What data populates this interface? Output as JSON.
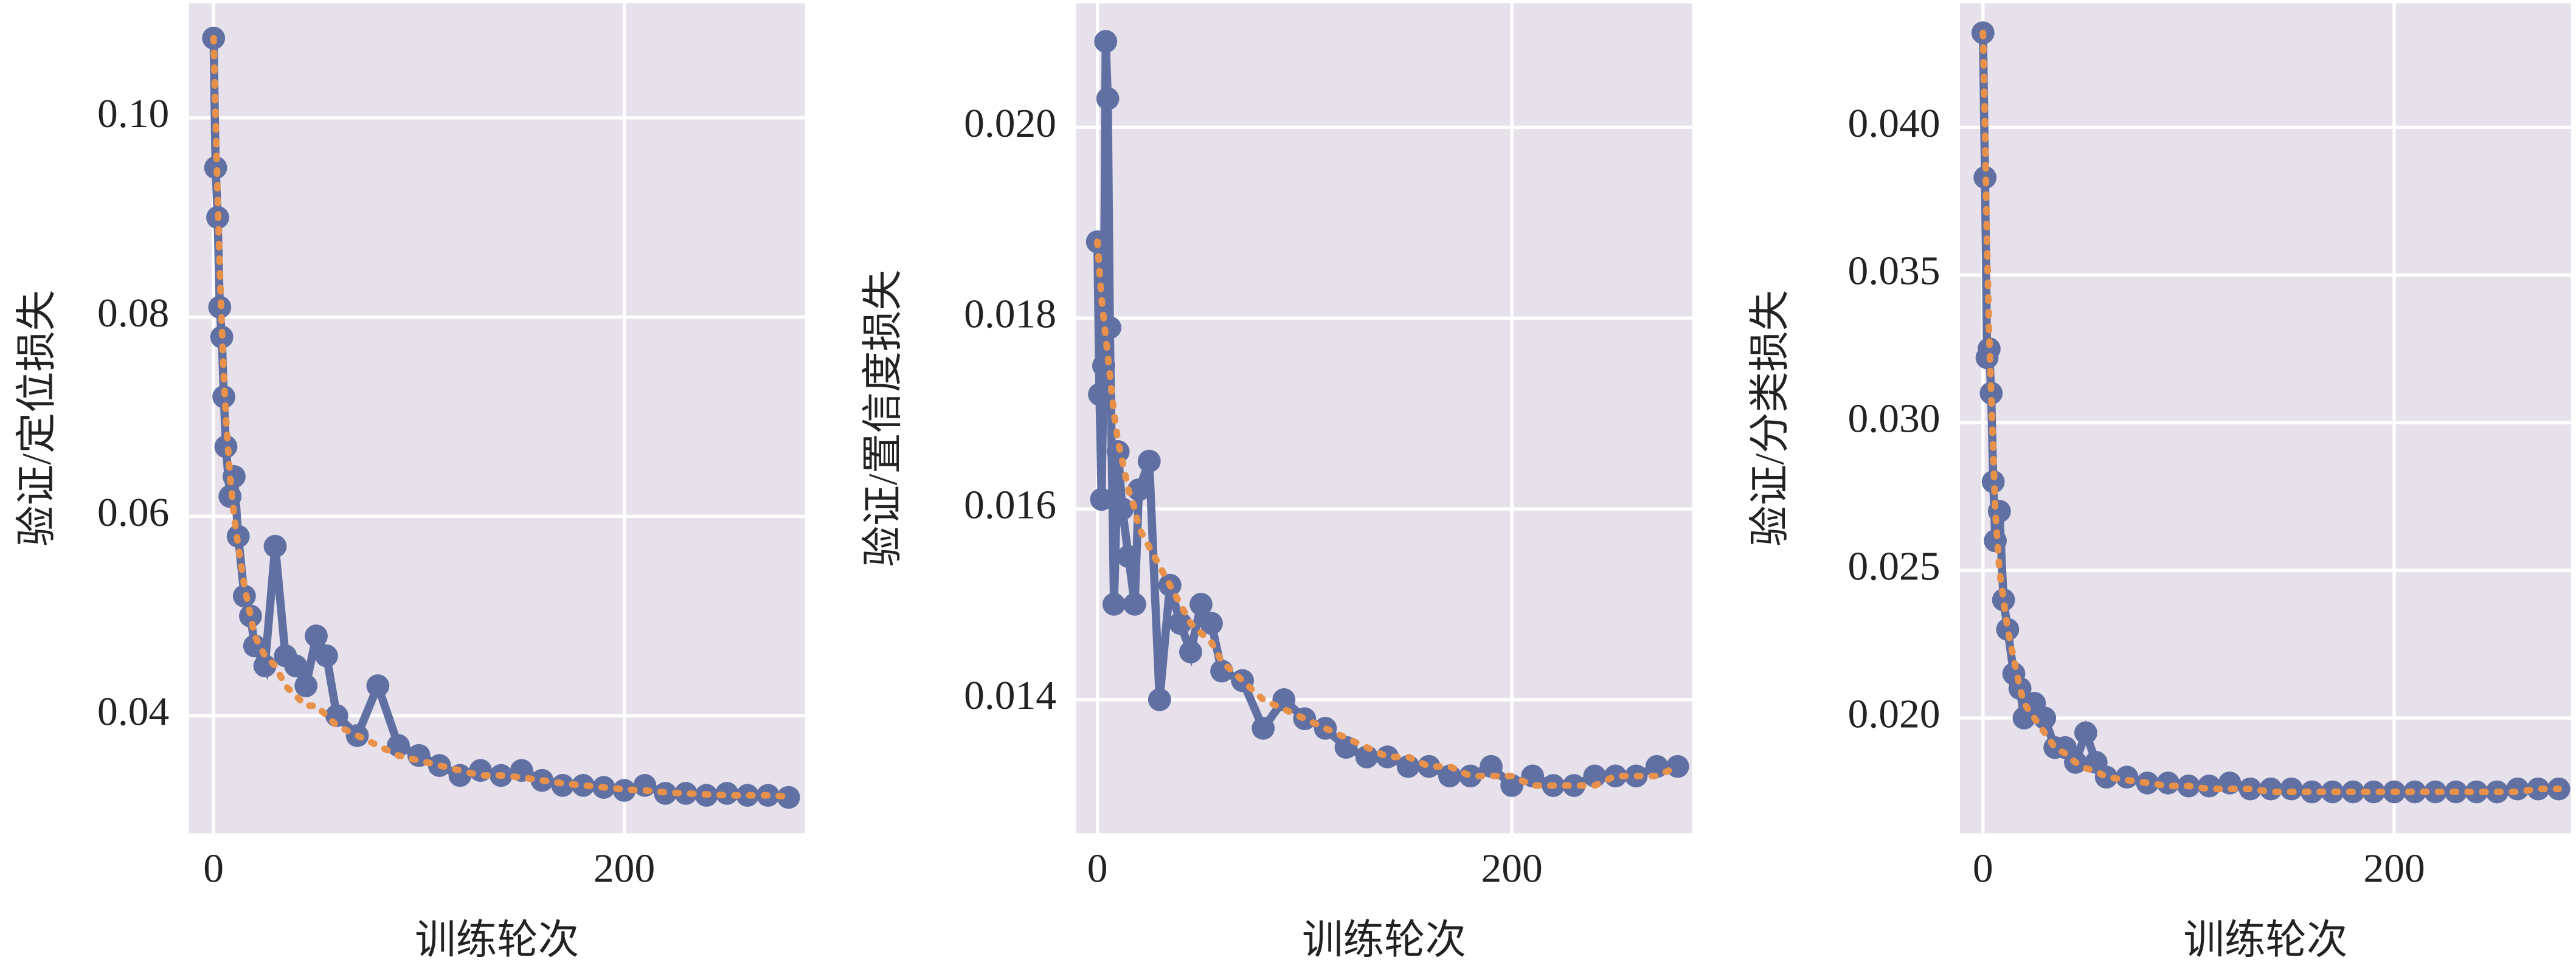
{
  "chart_data": [
    {
      "type": "line",
      "ylabel": "验证/定位损失",
      "xlabel": "训练轮次",
      "x": [
        0,
        1,
        2,
        3,
        4,
        5,
        6,
        8,
        10,
        12,
        15,
        18,
        20,
        25,
        30,
        35,
        40,
        45,
        50,
        55,
        60,
        70,
        80,
        90,
        100,
        110,
        120,
        130,
        140,
        150,
        160,
        170,
        180,
        190,
        200,
        210,
        220,
        230,
        240,
        250,
        260,
        270,
        280
      ],
      "series": [
        {
          "color": "#6170a3",
          "style": "solid-marker",
          "values": [
            0.108,
            0.095,
            0.09,
            0.081,
            0.078,
            0.072,
            0.067,
            0.062,
            0.064,
            0.058,
            0.052,
            0.05,
            0.047,
            0.045,
            0.057,
            0.046,
            0.045,
            0.043,
            0.048,
            0.046,
            0.04,
            0.038,
            0.043,
            0.037,
            0.036,
            0.035,
            0.034,
            0.0345,
            0.034,
            0.0345,
            0.0335,
            0.033,
            0.033,
            0.0328,
            0.0325,
            0.033,
            0.0322,
            0.0322,
            0.032,
            0.0322,
            0.032,
            0.032,
            0.0318
          ]
        },
        {
          "color": "#e8914a",
          "style": "dotted",
          "values": [
            0.108,
            0.1,
            0.092,
            0.085,
            0.079,
            0.074,
            0.07,
            0.064,
            0.06,
            0.057,
            0.053,
            0.05,
            0.048,
            0.046,
            0.045,
            0.043,
            0.042,
            0.041,
            0.041,
            0.04,
            0.039,
            0.038,
            0.037,
            0.036,
            0.0355,
            0.035,
            0.0345,
            0.034,
            0.034,
            0.0338,
            0.0335,
            0.0332,
            0.033,
            0.0328,
            0.0326,
            0.0325,
            0.0323,
            0.0322,
            0.0321,
            0.032,
            0.032,
            0.032,
            0.0319
          ]
        }
      ],
      "xlim": [
        -12,
        288
      ],
      "ylim": [
        0.0282,
        0.1115
      ],
      "xticks": [
        0,
        200
      ],
      "yticks": [
        0.04,
        0.06,
        0.08,
        {
          "value": 0.1,
          "label": "0.10"
        }
      ],
      "grid": true
    },
    {
      "type": "line",
      "ylabel": "验证/置信度损失",
      "xlabel": "训练轮次",
      "x": [
        0,
        1,
        2,
        3,
        4,
        5,
        6,
        8,
        10,
        12,
        15,
        18,
        20,
        25,
        30,
        35,
        40,
        45,
        50,
        55,
        60,
        70,
        80,
        90,
        100,
        110,
        120,
        130,
        140,
        150,
        160,
        170,
        180,
        190,
        200,
        210,
        220,
        230,
        240,
        250,
        260,
        270,
        280
      ],
      "series": [
        {
          "color": "#6170a3",
          "style": "solid-marker",
          "values": [
            0.0188,
            0.0172,
            0.0161,
            0.0175,
            0.0209,
            0.0203,
            0.0179,
            0.015,
            0.0166,
            0.016,
            0.0155,
            0.015,
            0.0162,
            0.0165,
            0.014,
            0.0152,
            0.0148,
            0.0145,
            0.015,
            0.0148,
            0.0143,
            0.0142,
            0.0137,
            0.014,
            0.0138,
            0.0137,
            0.0135,
            0.0134,
            0.0134,
            0.0133,
            0.0133,
            0.0132,
            0.0132,
            0.0133,
            0.0131,
            0.0132,
            0.0131,
            0.0131,
            0.0132,
            0.0132,
            0.0132,
            0.0133,
            0.0133
          ]
        },
        {
          "color": "#e8914a",
          "style": "dotted",
          "values": [
            0.0188,
            0.0185,
            0.0182,
            0.018,
            0.0178,
            0.0176,
            0.0174,
            0.017,
            0.0167,
            0.0165,
            0.0162,
            0.016,
            0.0158,
            0.0156,
            0.0154,
            0.0152,
            0.015,
            0.0148,
            0.0147,
            0.0146,
            0.0144,
            0.0142,
            0.014,
            0.0139,
            0.0138,
            0.0137,
            0.0136,
            0.0135,
            0.0134,
            0.0134,
            0.0133,
            0.0133,
            0.0132,
            0.0132,
            0.0132,
            0.0131,
            0.0131,
            0.0131,
            0.0131,
            0.0132,
            0.0132,
            0.0132,
            0.0133
          ]
        }
      ],
      "xlim": [
        -10.3,
        287
      ],
      "ylim": [
        0.0126,
        0.0213
      ],
      "xticks": [
        0,
        200
      ],
      "yticks": [
        0.014,
        0.016,
        0.018,
        {
          "value": 0.02,
          "label": "0.020"
        }
      ],
      "grid": true
    },
    {
      "type": "line",
      "ylabel": "验证/分类损失",
      "xlabel": "训练轮次",
      "x": [
        0,
        1,
        2,
        3,
        4,
        5,
        6,
        8,
        10,
        12,
        15,
        18,
        20,
        25,
        30,
        35,
        40,
        45,
        50,
        55,
        60,
        70,
        80,
        90,
        100,
        110,
        120,
        130,
        140,
        150,
        160,
        170,
        180,
        190,
        200,
        210,
        220,
        230,
        240,
        250,
        260,
        270,
        280
      ],
      "series": [
        {
          "color": "#6170a3",
          "style": "solid-marker",
          "values": [
            0.0432,
            0.0383,
            0.0322,
            0.0325,
            0.031,
            0.028,
            0.026,
            0.027,
            0.024,
            0.023,
            0.0215,
            0.021,
            0.02,
            0.0205,
            0.02,
            0.019,
            0.019,
            0.0185,
            0.0195,
            0.0185,
            0.018,
            0.018,
            0.0178,
            0.0178,
            0.0177,
            0.0177,
            0.0178,
            0.0176,
            0.0176,
            0.0176,
            0.0175,
            0.0175,
            0.0175,
            0.0175,
            0.0175,
            0.0175,
            0.0175,
            0.0175,
            0.0175,
            0.0175,
            0.0176,
            0.0176,
            0.0176
          ]
        },
        {
          "color": "#e8914a",
          "style": "dotted",
          "values": [
            0.0432,
            0.04,
            0.036,
            0.033,
            0.031,
            0.029,
            0.027,
            0.025,
            0.024,
            0.023,
            0.022,
            0.021,
            0.0205,
            0.02,
            0.0195,
            0.019,
            0.0188,
            0.0185,
            0.0183,
            0.0182,
            0.018,
            0.0179,
            0.0178,
            0.0177,
            0.0177,
            0.0176,
            0.0176,
            0.0176,
            0.0175,
            0.0175,
            0.0175,
            0.0175,
            0.0175,
            0.0175,
            0.0175,
            0.0175,
            0.0175,
            0.0175,
            0.0175,
            0.0175,
            0.0175,
            0.0176,
            0.0176
          ]
        }
      ],
      "xlim": [
        -11.2,
        286
      ],
      "ylim": [
        0.0161,
        0.0442
      ],
      "xticks": [
        0,
        200
      ],
      "yticks": [
        {
          "value": 0.02,
          "label": "0.020"
        },
        0.025,
        {
          "value": 0.03,
          "label": "0.030"
        },
        0.035,
        {
          "value": 0.04,
          "label": "0.040"
        }
      ],
      "grid": true
    }
  ]
}
